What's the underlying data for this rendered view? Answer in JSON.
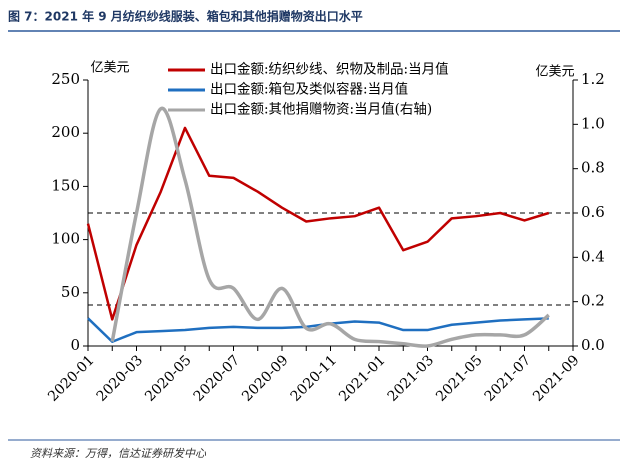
{
  "chart_data": {
    "type": "line",
    "title": "图 7：2021 年 9 月纺织纱线服装、箱包和其他捐赠物资出口水平",
    "source": "资料来源：万得，信达证券研发中心",
    "ylabel": "亿美元",
    "y2label": "亿美元",
    "categories": [
      "2020-01",
      null,
      "2020-03",
      null,
      "2020-05",
      null,
      "2020-07",
      null,
      "2020-09",
      null,
      "2020-11",
      null,
      "2021-01",
      null,
      "2021-03",
      null,
      "2021-05",
      null,
      "2021-07",
      null,
      "2021-09"
    ],
    "series": [
      {
        "name": "出口金额:纺织纱线、织物及制品:当月值",
        "color": "#c00000",
        "values": [
          115,
          25,
          95,
          145,
          205,
          160,
          158,
          145,
          130,
          117,
          120,
          122,
          130,
          90,
          98,
          120,
          122,
          125,
          118,
          125,
          null
        ]
      },
      {
        "name": "出口金额:箱包及类似容器:当月值",
        "color": "#1f6fc0",
        "values": [
          26,
          4,
          13,
          14,
          15,
          17,
          18,
          17,
          17,
          18,
          21,
          23,
          22,
          15,
          15,
          20,
          22,
          24,
          25,
          26,
          null
        ]
      },
      {
        "name": "出口金额:其他捐赠物资:当月值(右轴)",
        "color": "#a6a6a6",
        "axis": "y2",
        "smooth": true,
        "values": [
          null,
          0.02,
          0.6,
          1.07,
          0.75,
          0.3,
          0.26,
          0.12,
          0.26,
          0.08,
          0.1,
          0.03,
          0.02,
          0.01,
          0.0,
          0.03,
          0.05,
          0.05,
          0.05,
          0.14,
          null
        ]
      }
    ],
    "ylim": [
      0,
      250
    ],
    "yticks": [
      0,
      50,
      100,
      150,
      200,
      250
    ],
    "y2lim": [
      0,
      1.2
    ],
    "y2ticks": [
      {
        "value": 0,
        "label": "0.0"
      },
      0.2,
      0.4,
      0.6,
      0.8,
      {
        "value": 1,
        "label": "1.0"
      },
      1.2
    ],
    "hlines": [
      {
        "value": 125,
        "axis": "y"
      },
      {
        "value": 0.185,
        "axis": "y2"
      }
    ],
    "legend": "upper center"
  }
}
